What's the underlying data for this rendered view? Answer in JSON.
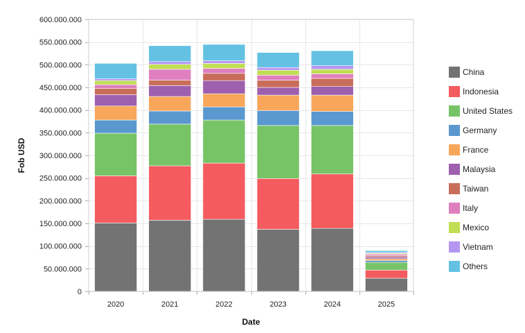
{
  "chart_data": {
    "type": "bar",
    "stacked": true,
    "title": "",
    "xlabel": "Date",
    "ylabel": "Fob USD",
    "ylim": [
      0,
      600000000
    ],
    "y_ticks": [
      0,
      50000000,
      100000000,
      150000000,
      200000000,
      250000000,
      300000000,
      350000000,
      400000000,
      450000000,
      500000000,
      550000000,
      600000000
    ],
    "y_tick_labels": [
      "0",
      "50.000.000",
      "100.000.000",
      "150.000.000",
      "200.000.000",
      "250.000.000",
      "300.000.000",
      "350.000.000",
      "400.000.000",
      "450.000.000",
      "500.000.000",
      "550.000.000",
      "600.000.000"
    ],
    "grid": true,
    "legend_position": "right",
    "categories": [
      "2020",
      "2021",
      "2022",
      "2023",
      "2024",
      "2025"
    ],
    "series": [
      {
        "name": "China",
        "color": "#737373",
        "values": [
          151000000,
          157000000,
          159000000,
          137000000,
          139000000,
          29000000
        ]
      },
      {
        "name": "Indonesia",
        "color": "#f45b5f",
        "values": [
          104000000,
          120000000,
          124000000,
          112000000,
          120000000,
          18000000
        ]
      },
      {
        "name": "United States",
        "color": "#77c466",
        "values": [
          94000000,
          92000000,
          95000000,
          117000000,
          107000000,
          17000000
        ]
      },
      {
        "name": "Germany",
        "color": "#5a98cf",
        "values": [
          29000000,
          29000000,
          29000000,
          33000000,
          31000000,
          4000000
        ]
      },
      {
        "name": "France",
        "color": "#f8a65a",
        "values": [
          31000000,
          32000000,
          29000000,
          34000000,
          36000000,
          4000000
        ]
      },
      {
        "name": "Malaysia",
        "color": "#9e5fae",
        "values": [
          25000000,
          24000000,
          29000000,
          17000000,
          19000000,
          4000000
        ]
      },
      {
        "name": "Taiwan",
        "color": "#c96d5b",
        "values": [
          14000000,
          12000000,
          16000000,
          16000000,
          18000000,
          3000000
        ]
      },
      {
        "name": "Italy",
        "color": "#df7fbf",
        "values": [
          8000000,
          24000000,
          11000000,
          11000000,
          10000000,
          3000000
        ]
      },
      {
        "name": "Mexico",
        "color": "#c1de54",
        "values": [
          9000000,
          11000000,
          11000000,
          11000000,
          10000000,
          2000000
        ]
      },
      {
        "name": "Vietnam",
        "color": "#b597f2",
        "values": [
          4000000,
          6000000,
          6000000,
          6000000,
          8000000,
          2000000
        ]
      },
      {
        "name": "Others",
        "color": "#64c1e3",
        "values": [
          34000000,
          35000000,
          36000000,
          33000000,
          33000000,
          4000000
        ]
      }
    ]
  }
}
